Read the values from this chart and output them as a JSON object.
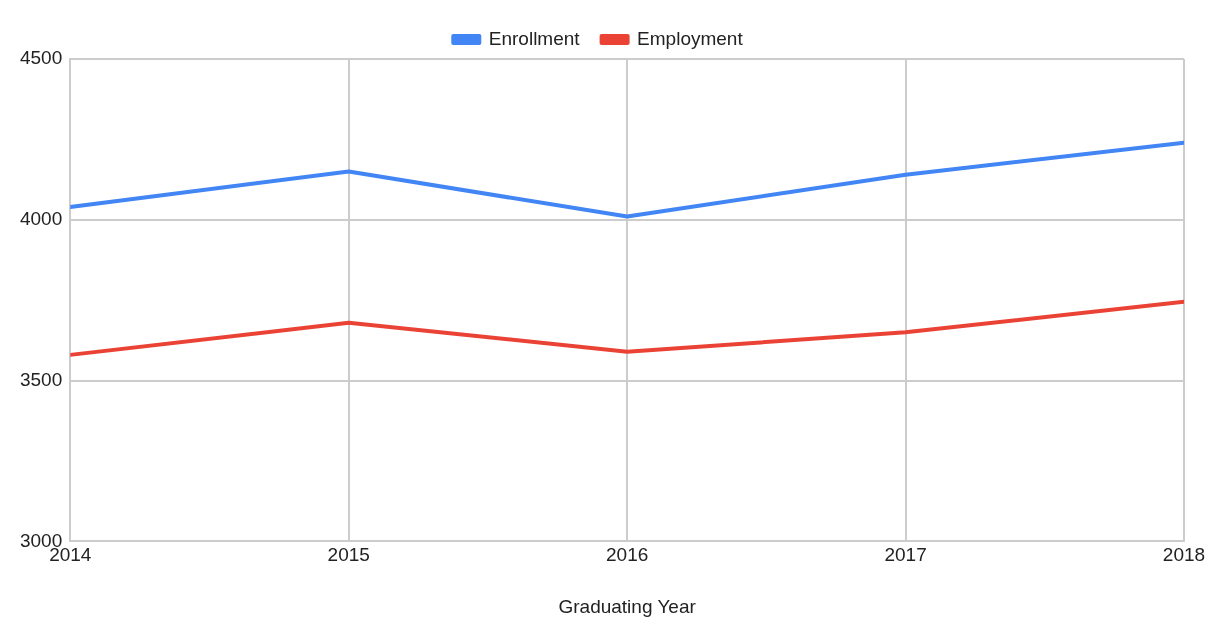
{
  "chart_data": {
    "type": "line",
    "xlabel": "Graduating Year",
    "x": [
      2014,
      2015,
      2016,
      2017,
      2018
    ],
    "series": [
      {
        "name": "Enrollment",
        "color": "#4285f4",
        "values": [
          4040,
          4150,
          4010,
          4140,
          4240
        ]
      },
      {
        "name": "Employment",
        "color": "#ea4335",
        "values": [
          3580,
          3680,
          3590,
          3650,
          3745
        ]
      }
    ],
    "xlim": [
      2014,
      2018
    ],
    "xticks": [
      2014,
      2015,
      2016,
      2017,
      2018
    ],
    "ylim": [
      3000,
      4500
    ],
    "yticks": [
      3000,
      3500,
      4000,
      4500
    ],
    "grid": true,
    "legend": "top",
    "marker": "none",
    "line_style": "solid"
  }
}
